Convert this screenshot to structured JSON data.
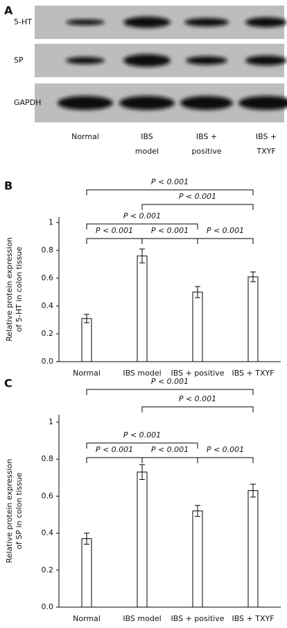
{
  "panel_labels": [
    "A",
    "B",
    "C"
  ],
  "blot": {
    "rows": [
      "5-HT",
      "SP",
      "GAPDH"
    ],
    "lanes": [
      [
        "Normal"
      ],
      [
        "IBS",
        "model"
      ],
      [
        "IBS +",
        "positive"
      ],
      [
        "IBS +",
        "TXYF"
      ]
    ]
  },
  "chart_data": [
    {
      "type": "bar",
      "y_label": [
        "Relative protein expression",
        "of 5-HT in colon tissue"
      ],
      "categories": [
        "Normal",
        "IBS model",
        "IBS + positive",
        "IBS + TXYF"
      ],
      "values": [
        0.31,
        0.76,
        0.5,
        0.61
      ],
      "errors": [
        0.03,
        0.05,
        0.04,
        0.035
      ],
      "color": "#ffffff",
      "ylim": [
        0,
        1.04
      ],
      "yticks": [
        {
          "value": 0,
          "label": "0.0"
        },
        0.2,
        0.4,
        0.6,
        0.8,
        1
      ],
      "comparisons": [
        {
          "from": "Normal",
          "to": "IBS + TXYF",
          "label": "P < 0.001"
        },
        {
          "from": "IBS model",
          "to": "IBS + TXYF",
          "label": "P < 0.001"
        },
        {
          "from": "Normal",
          "to": "IBS + positive",
          "label": "P < 0.001"
        },
        {
          "from": "Normal",
          "to": "IBS model",
          "label": "P < 0.001"
        },
        {
          "from": "IBS model",
          "to": "IBS + positive",
          "label": "P < 0.001"
        },
        {
          "from": "IBS + positive",
          "to": "IBS + TXYF",
          "label": "P < 0.001"
        }
      ]
    },
    {
      "type": "bar",
      "y_label": [
        "Relative protein expression",
        "of SP in colon tissue"
      ],
      "categories": [
        "Normal",
        "IBS model",
        "IBS + positive",
        "IBS + TXYF"
      ],
      "values": [
        0.37,
        0.73,
        0.52,
        0.63
      ],
      "errors": [
        0.03,
        0.04,
        0.03,
        0.035
      ],
      "color": "#ffffff",
      "ylim": [
        0,
        1.04
      ],
      "yticks": [
        {
          "value": 0,
          "label": "0.0"
        },
        0.2,
        0.4,
        0.6,
        0.8,
        1
      ],
      "comparisons": [
        {
          "from": "Normal",
          "to": "IBS + TXYF",
          "label": "P < 0.001"
        },
        {
          "from": "IBS model",
          "to": "IBS + TXYF",
          "label": "P < 0.001"
        },
        {
          "from": "Normal",
          "to": "IBS + positive",
          "label": "P < 0.001"
        },
        {
          "from": "Normal",
          "to": "IBS model",
          "label": "P < 0.001"
        },
        {
          "from": "IBS model",
          "to": "IBS + positive",
          "label": "P < 0.001"
        },
        {
          "from": "IBS + positive",
          "to": "IBS + TXYF",
          "label": "P < 0.001"
        }
      ]
    }
  ]
}
